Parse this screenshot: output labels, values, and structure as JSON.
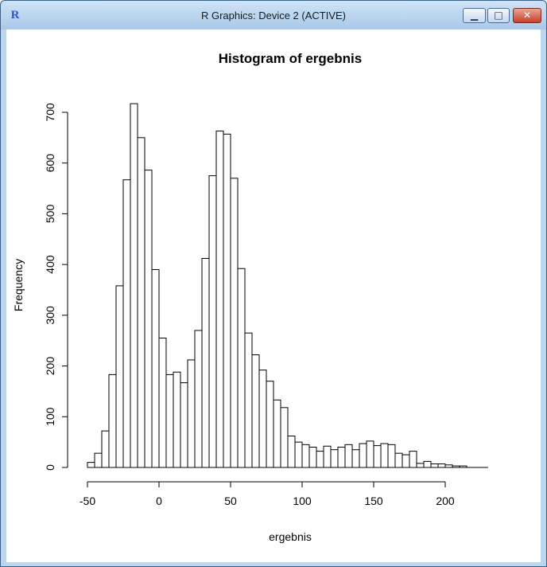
{
  "window": {
    "title": "R Graphics: Device 2 (ACTIVE)",
    "app_icon": "R",
    "controls": {
      "minimize": "minimize-icon",
      "maximize": "maximize-icon",
      "close": "close-icon"
    }
  },
  "chart_data": {
    "type": "bar",
    "title": "Histogram of ergebnis",
    "xlabel": "ergebnis",
    "ylabel": "Frequency",
    "bin_width": 5,
    "bin_start": -50,
    "x_ticks": [
      -50,
      0,
      50,
      100,
      150,
      200
    ],
    "y_ticks": [
      0,
      100,
      200,
      300,
      400,
      500,
      600,
      700
    ],
    "xlim": [
      -50,
      235
    ],
    "ylim": [
      0,
      720
    ],
    "grid": false,
    "values": [
      10,
      28,
      72,
      183,
      358,
      567,
      717,
      650,
      586,
      390,
      255,
      183,
      188,
      167,
      212,
      270,
      412,
      575,
      663,
      657,
      570,
      392,
      265,
      222,
      192,
      170,
      133,
      118,
      62,
      50,
      45,
      40,
      32,
      42,
      35,
      40,
      45,
      35,
      47,
      52,
      43,
      47,
      45,
      28,
      25,
      32,
      8,
      12,
      7,
      7,
      5,
      3,
      3
    ]
  }
}
